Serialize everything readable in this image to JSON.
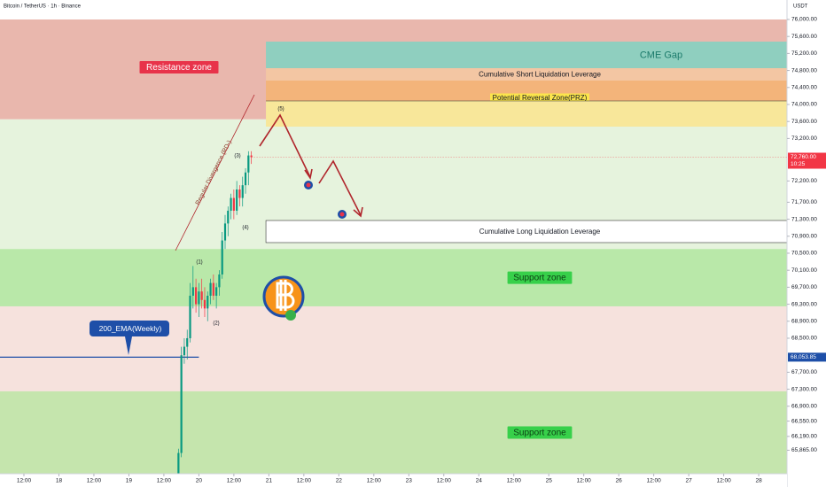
{
  "chart_data": {
    "type": "candlestick",
    "title": "Bitcoin / TetherUS · 1h · Binance",
    "currency": "USDT",
    "xlim": [
      -8.2,
      261.7
    ],
    "xticks": [
      {
        "value": 0,
        "label": "12:00"
      },
      {
        "value": 12,
        "label": "18"
      },
      {
        "value": 24,
        "label": "12:00"
      },
      {
        "value": 36,
        "label": "19"
      },
      {
        "value": 48,
        "label": "12:00"
      },
      {
        "value": 60,
        "label": "20"
      },
      {
        "value": 72,
        "label": "12:00"
      },
      {
        "value": 84,
        "label": "21"
      },
      {
        "value": 96,
        "label": "12:00"
      },
      {
        "value": 108,
        "label": "22"
      },
      {
        "value": 120,
        "label": "12:00"
      },
      {
        "value": 132,
        "label": "23"
      },
      {
        "value": 144,
        "label": "12:00"
      },
      {
        "value": 156,
        "label": "24"
      },
      {
        "value": 168,
        "label": "12:00"
      },
      {
        "value": 180,
        "label": "25"
      },
      {
        "value": 192,
        "label": "12:00"
      },
      {
        "value": 204,
        "label": "26"
      },
      {
        "value": 216,
        "label": "12:00"
      },
      {
        "value": 228,
        "label": "27"
      },
      {
        "value": 240,
        "label": "12:00"
      },
      {
        "value": 252,
        "label": "28"
      }
    ],
    "ylim": [
      65312,
      76458
    ],
    "yticks": [
      {
        "value": 76000,
        "label": "76,000.00"
      },
      {
        "value": 75600,
        "label": "75,600.00"
      },
      {
        "value": 75200,
        "label": "75,200.00"
      },
      {
        "value": 74800,
        "label": "74,800.00"
      },
      {
        "value": 74400,
        "label": "74,400.00"
      },
      {
        "value": 74000,
        "label": "74,000.00"
      },
      {
        "value": 73600,
        "label": "73,600.00"
      },
      {
        "value": 73200,
        "label": "73,200.00"
      },
      {
        "value": 72200,
        "label": "72,200.00"
      },
      {
        "value": 71700,
        "label": "71,700.00"
      },
      {
        "value": 71300,
        "label": "71,300.00"
      },
      {
        "value": 70900,
        "label": "70,900.00"
      },
      {
        "value": 70500,
        "label": "70,500.00"
      },
      {
        "value": 70100,
        "label": "70,100.00"
      },
      {
        "value": 69700,
        "label": "69,700.00"
      },
      {
        "value": 69300,
        "label": "69,300.00"
      },
      {
        "value": 68900,
        "label": "68,900.00"
      },
      {
        "value": 68500,
        "label": "68,500.00"
      },
      {
        "value": 67700,
        "label": "67,700.00"
      },
      {
        "value": 67300,
        "label": "67,300.00"
      },
      {
        "value": 66900,
        "label": "66,900.00"
      },
      {
        "value": 66550,
        "label": "66,550.00"
      },
      {
        "value": 66190,
        "label": "66,190.00"
      },
      {
        "value": 65865,
        "label": "65,865.00"
      }
    ],
    "up_color": "#089981",
    "down_color": "#f23645",
    "candles": {
      "x": [
        53,
        54,
        55,
        56,
        57,
        58,
        59,
        60,
        61,
        62,
        63,
        64,
        65,
        66,
        67,
        68,
        69,
        70,
        71,
        72,
        73,
        74,
        75,
        76,
        77,
        78
      ],
      "open": [
        65300,
        65800,
        68100,
        68300,
        68500,
        69500,
        69700,
        69300,
        69600,
        69400,
        69200,
        69500,
        69800,
        69500,
        69700,
        70000,
        70800,
        71200,
        71500,
        71800,
        71500,
        72000,
        71800,
        72100,
        72400,
        72800
      ],
      "high": [
        65900,
        68300,
        68500,
        68700,
        69800,
        70200,
        69900,
        69800,
        69900,
        69700,
        69600,
        69900,
        70000,
        69800,
        70100,
        71000,
        71400,
        71600,
        71900,
        72000,
        72200,
        72100,
        72300,
        72500,
        72900,
        72900
      ],
      "low": [
        65200,
        65700,
        67900,
        68000,
        68400,
        69200,
        69100,
        69000,
        69200,
        69000,
        68900,
        69300,
        69400,
        69200,
        69500,
        69900,
        70600,
        70900,
        71300,
        71300,
        71400,
        71600,
        71600,
        71900,
        72100,
        72600
      ],
      "close": [
        65800,
        68100,
        68300,
        68500,
        69500,
        69700,
        69300,
        69600,
        69400,
        69200,
        69500,
        69800,
        69500,
        69700,
        70000,
        70800,
        71200,
        71500,
        71800,
        71500,
        72000,
        71800,
        72100,
        72400,
        72800,
        72760
      ]
    },
    "zones": [
      {
        "name": "Resistance zone",
        "from": 73650,
        "to": 76000,
        "color": "#e9b7ad",
        "label_color": "#e8334a"
      },
      {
        "from": 70600,
        "to": 73650,
        "color": "#e6f3dd"
      },
      {
        "name": "Support zone",
        "from": 69250,
        "to": 70600,
        "color": "#b9e8a9",
        "label_color": "#37d04a"
      },
      {
        "from": 67250,
        "to": 69250,
        "color": "#f6e2dd"
      },
      {
        "name": "Support zone",
        "from": 65312,
        "to": 67250,
        "color": "#c5e5ad",
        "label_color": "#37d04a"
      }
    ],
    "boxes": [
      {
        "name": "CME Gap",
        "from": 74854,
        "to": 75479,
        "x_start": 83,
        "color": "#8fcfbf"
      },
      {
        "name": "Cumulative Short Liquidation Leverage",
        "from": 74562,
        "to": 74854,
        "x_start": 83,
        "color": "#f3c6a3"
      },
      {
        "name": "Potential Reversal Zone(PRZ)",
        "from": 74083,
        "to": 74562,
        "x_start": 83,
        "color": "#f3b47a"
      },
      {
        "from": 73479,
        "to": 74083,
        "x_start": 83,
        "color": "#f8e79a"
      },
      {
        "name": "Cumulative Long Liquidation Leverage",
        "from": 70750,
        "to": 71270,
        "x_start": 83,
        "color": "#ffffff"
      }
    ],
    "ema": {
      "name": "200_EMA(Weekly)",
      "value": 68053.85,
      "value_label": "68,053.85",
      "x_end": 60,
      "color": "#1e4fa8"
    },
    "last_price": {
      "value": 72760,
      "label": "72,760.00",
      "countdown": "10:25",
      "color": "#f23645"
    },
    "annotations": [
      "(1)",
      "(2)",
      "(3)",
      "(4)",
      "(5)",
      "Regular Divergence (RD-)"
    ]
  }
}
